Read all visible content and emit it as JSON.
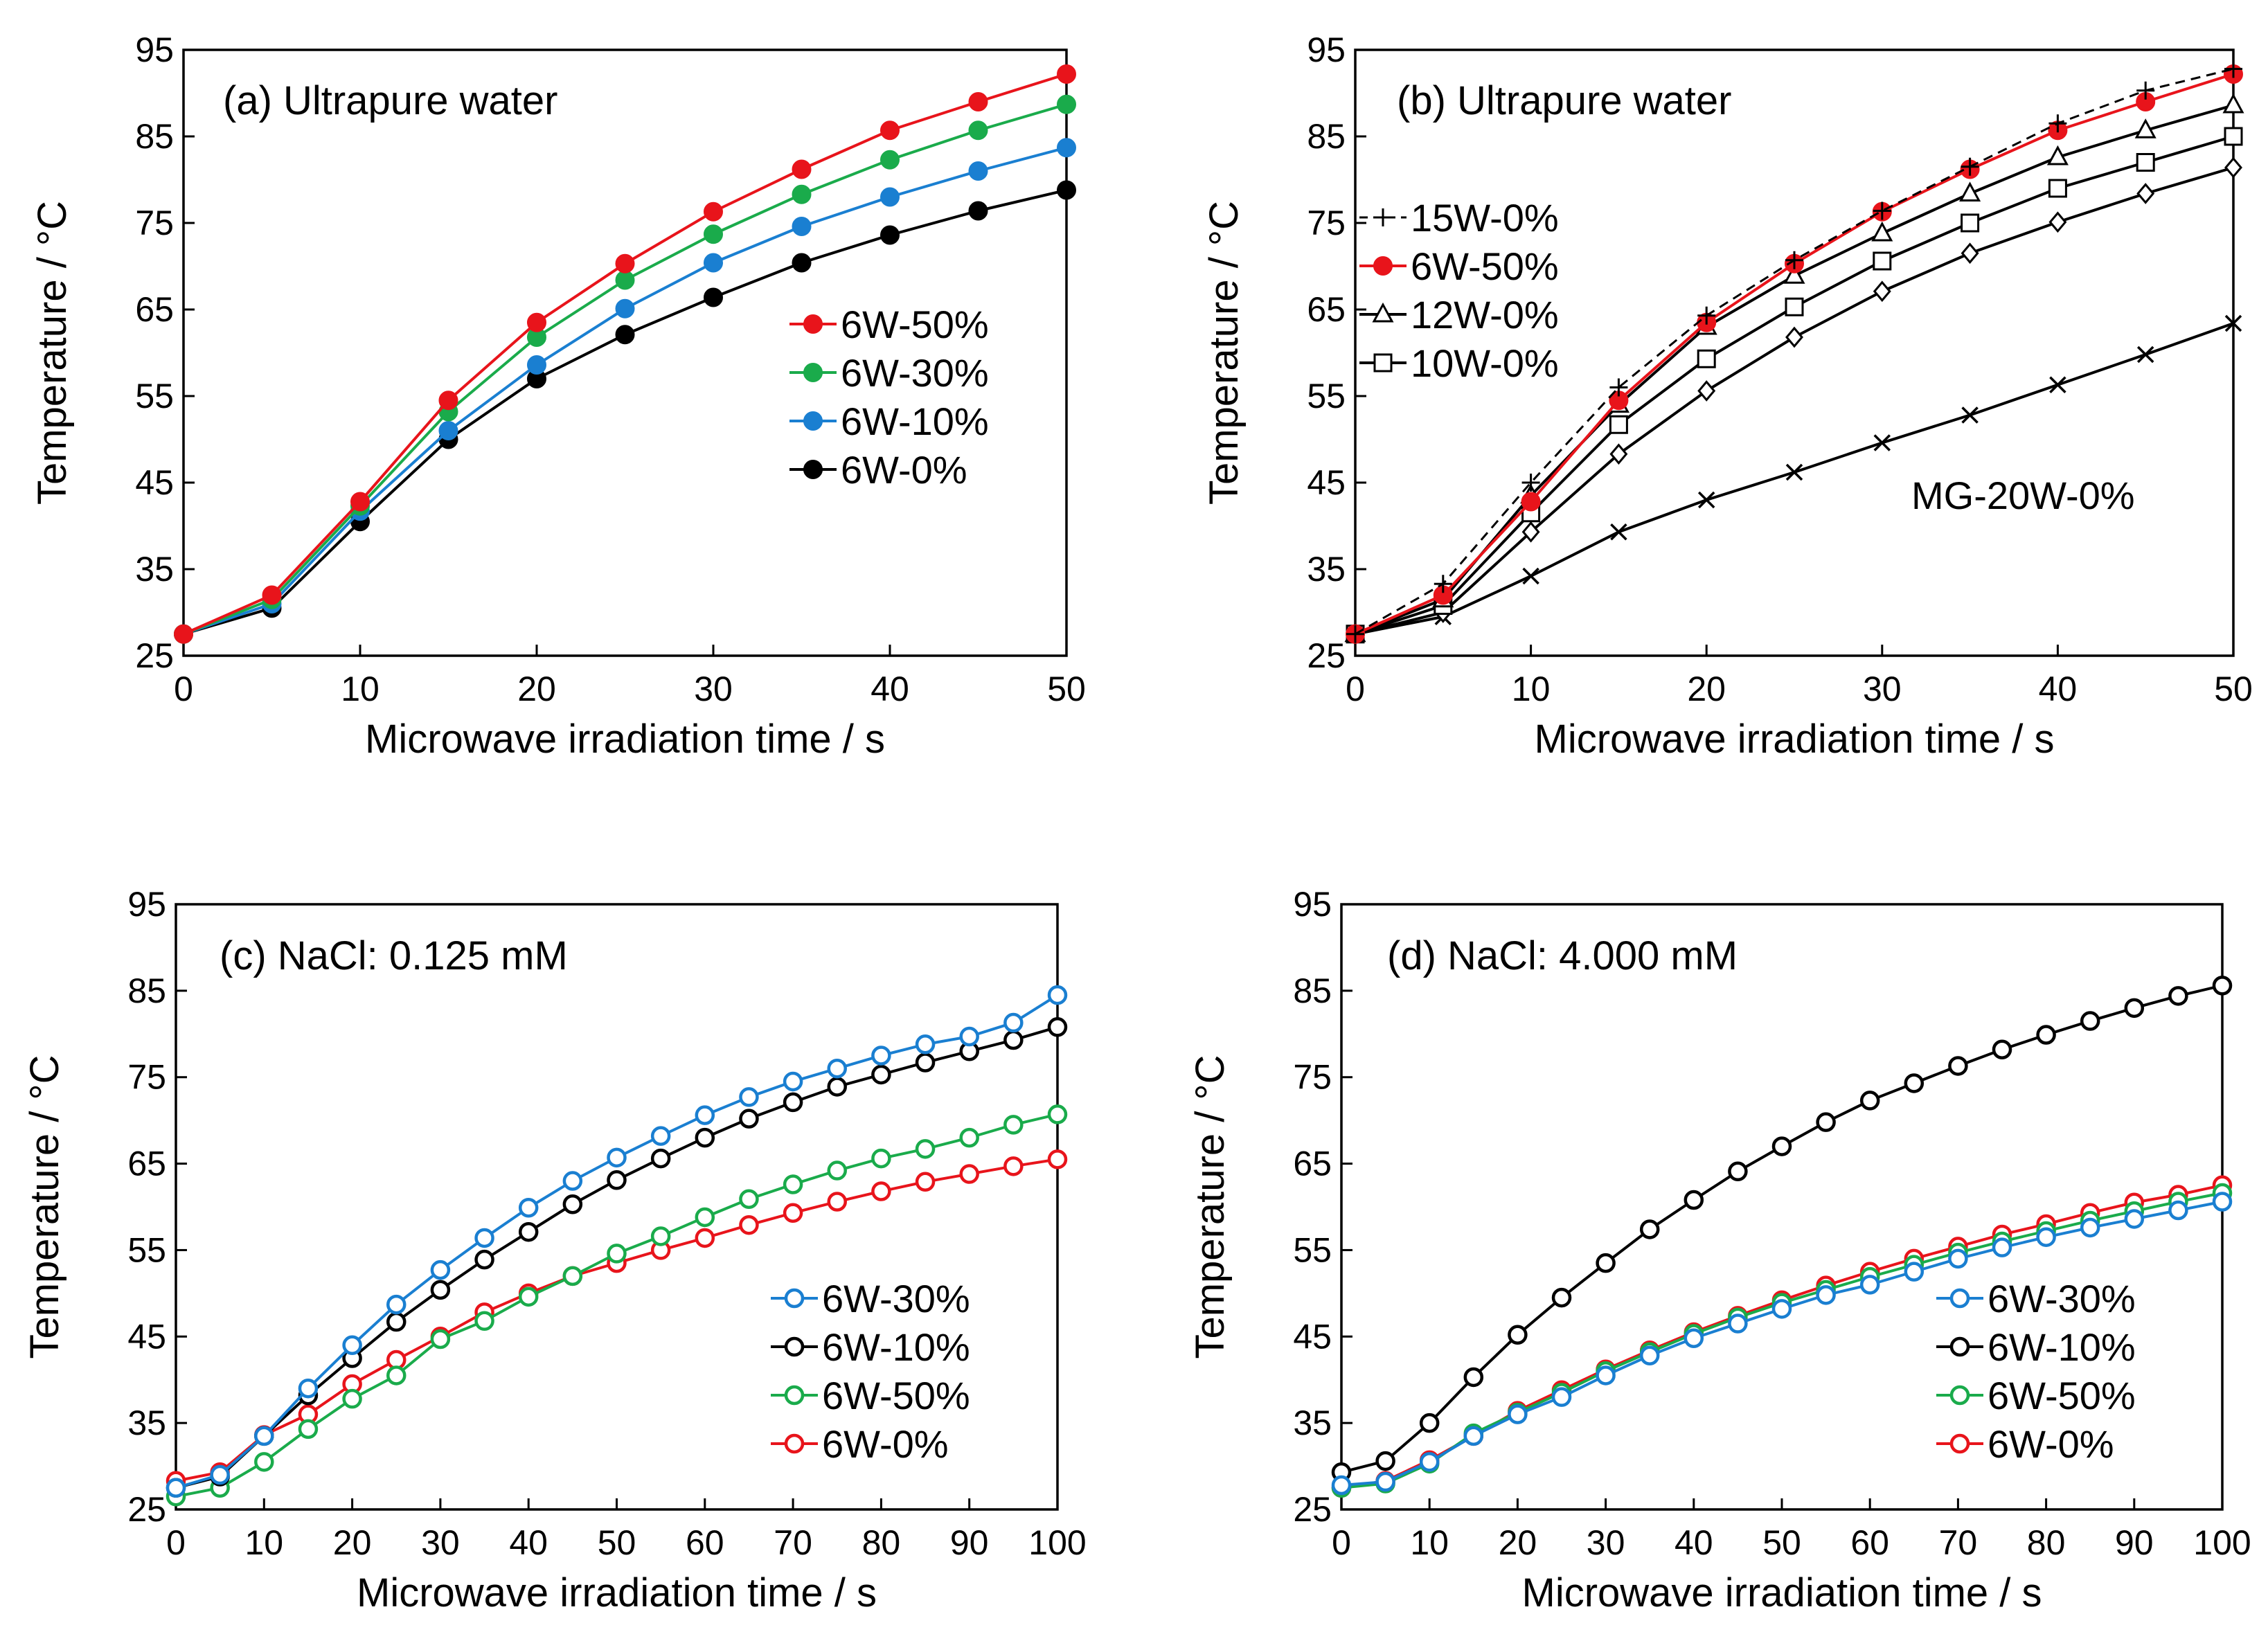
{
  "chart_data": [
    {
      "type": "line",
      "title": "(a) Ultrapure water",
      "xlabel": "Microwave irradiation time / s",
      "ylabel": "Temperature / °C",
      "xlim": [
        0,
        50
      ],
      "ylim": [
        25,
        95
      ],
      "xticks": [
        0,
        10,
        20,
        30,
        40,
        50
      ],
      "yticks": [
        25,
        35,
        45,
        55,
        65,
        75,
        85,
        95
      ],
      "legend_position": "right",
      "x": [
        0,
        5,
        10,
        15,
        20,
        25,
        30,
        35,
        40,
        45,
        50
      ],
      "series": [
        {
          "name": "6W-50%",
          "color": "#e8141b",
          "marker": "filled-circle",
          "values": [
            27.5,
            32,
            42.8,
            54.5,
            63.5,
            70.3,
            76.3,
            81.2,
            85.7,
            89.0,
            92.2
          ]
        },
        {
          "name": "6W-30%",
          "color": "#1aab4b",
          "marker": "filled-circle",
          "values": [
            27.5,
            31.5,
            42.3,
            53.2,
            61.8,
            68.4,
            73.7,
            78.3,
            82.3,
            85.7,
            88.7
          ]
        },
        {
          "name": "6W-10%",
          "color": "#1a7fd1",
          "marker": "filled-circle",
          "values": [
            27.5,
            31,
            41.7,
            51,
            58.6,
            65.1,
            70.4,
            74.6,
            78.0,
            81.0,
            83.7
          ]
        },
        {
          "name": "6W-0%",
          "color": "#000000",
          "marker": "filled-circle",
          "values": [
            27.5,
            30.5,
            40.5,
            50,
            57,
            62.1,
            66.4,
            70.4,
            73.6,
            76.4,
            78.8
          ]
        }
      ]
    },
    {
      "type": "line",
      "title": "(b) Ultrapure water",
      "xlabel": "Microwave irradiation time / s",
      "ylabel": "Temperature / °C",
      "xlim": [
        0,
        50
      ],
      "ylim": [
        25,
        95
      ],
      "xticks": [
        0,
        10,
        20,
        30,
        40,
        50
      ],
      "yticks": [
        25,
        35,
        45,
        55,
        65,
        75,
        85,
        95
      ],
      "legend_position": "top-left",
      "annotation": "MG-20W-0%",
      "x": [
        0,
        5,
        10,
        15,
        20,
        25,
        30,
        35,
        40,
        45,
        50
      ],
      "series": [
        {
          "name": "15W-0%",
          "color": "#000000",
          "marker": "plus",
          "dashed": true,
          "values": [
            27.5,
            33.3,
            45,
            56,
            64.3,
            70.7,
            76.4,
            81.5,
            86.5,
            90.3,
            92.8
          ]
        },
        {
          "name": "6W-50%",
          "color": "#e8141b",
          "marker": "filled-circle",
          "values": [
            27.5,
            32,
            42.8,
            54.5,
            63.5,
            70.3,
            76.3,
            81.2,
            85.7,
            89.0,
            92.2
          ]
        },
        {
          "name": "12W-0%",
          "color": "#000000",
          "marker": "triangle",
          "values": [
            27.5,
            31.5,
            43.5,
            54,
            63,
            68.9,
            73.8,
            78.4,
            82.6,
            85.7,
            88.6
          ]
        },
        {
          "name": "10W-0%",
          "color": "#000000",
          "marker": "square",
          "values": [
            27.5,
            30.8,
            41.5,
            51.7,
            59.3,
            65.3,
            70.6,
            75.0,
            79.0,
            82.0,
            85.0
          ]
        },
        {
          "name": "",
          "color": "#000000",
          "marker": "diamond",
          "values": [
            27.5,
            30,
            39.3,
            48.3,
            55.6,
            61.8,
            67.1,
            71.5,
            75.1,
            78.4,
            81.4
          ]
        },
        {
          "name": "MG-20W-0%",
          "color": "#000000",
          "marker": "x",
          "values": [
            27.5,
            29.5,
            34.2,
            39.3,
            43,
            46.2,
            49.6,
            52.8,
            56.3,
            59.8,
            63.4
          ]
        }
      ]
    },
    {
      "type": "line",
      "title": "(c) NaCl: 0.125 mM",
      "xlabel": "Microwave irradiation time / s",
      "ylabel": "Temperature / °C",
      "xlim": [
        0,
        100
      ],
      "ylim": [
        25,
        95
      ],
      "xticks": [
        0,
        10,
        20,
        30,
        40,
        50,
        60,
        70,
        80,
        90,
        100
      ],
      "yticks": [
        25,
        35,
        45,
        55,
        65,
        75,
        85,
        95
      ],
      "legend_position": "bottom-right",
      "x": [
        0,
        5,
        10,
        15,
        20,
        25,
        30,
        35,
        40,
        45,
        50,
        55,
        60,
        65,
        70,
        75,
        80,
        85,
        90,
        95,
        100
      ],
      "series": [
        {
          "name": "6W-30%",
          "color": "#1a7fd1",
          "marker": "open-circle",
          "values": [
            27.5,
            29,
            33.5,
            39,
            44,
            48.7,
            52.7,
            56.4,
            59.9,
            63,
            65.7,
            68.2,
            70.6,
            72.7,
            74.5,
            76,
            77.5,
            78.8,
            79.7,
            81.3,
            84.5
          ]
        },
        {
          "name": "6W-10%",
          "color": "#000000",
          "marker": "open-circle",
          "values": [
            27.5,
            28.8,
            33.5,
            38.2,
            42.5,
            46.7,
            50.4,
            53.9,
            57.1,
            60.3,
            63.1,
            65.6,
            68,
            70.2,
            72.1,
            73.9,
            75.3,
            76.7,
            78,
            79.3,
            80.8
          ]
        },
        {
          "name": "6W-50%",
          "color": "#1aab4b",
          "marker": "open-circle",
          "values": [
            26.5,
            27.5,
            30.5,
            34.3,
            37.8,
            40.5,
            44.7,
            46.8,
            49.6,
            52.0,
            54.6,
            56.6,
            58.8,
            60.9,
            62.6,
            64.2,
            65.6,
            66.7,
            68,
            69.5,
            70.7
          ]
        },
        {
          "name": "6W-0%",
          "color": "#e8141b",
          "marker": "open-circle",
          "values": [
            28.3,
            29.3,
            33.6,
            36.0,
            39.5,
            42.3,
            45.0,
            47.8,
            50.0,
            52.0,
            53.5,
            55.0,
            56.4,
            57.9,
            59.3,
            60.6,
            61.8,
            62.9,
            63.8,
            64.7,
            65.5
          ]
        }
      ]
    },
    {
      "type": "line",
      "title": "(d) NaCl: 4.000 mM",
      "xlabel": "Microwave irradiation time / s",
      "ylabel": "Temperature / °C",
      "xlim": [
        0,
        100
      ],
      "ylim": [
        25,
        95
      ],
      "xticks": [
        0,
        10,
        20,
        30,
        40,
        50,
        60,
        70,
        80,
        90,
        100
      ],
      "yticks": [
        25,
        35,
        45,
        55,
        65,
        75,
        85,
        95
      ],
      "legend_position": "bottom-right",
      "x": [
        0,
        5,
        10,
        15,
        20,
        25,
        30,
        35,
        40,
        45,
        50,
        55,
        60,
        65,
        70,
        75,
        80,
        85,
        90,
        95,
        100
      ],
      "series": [
        {
          "name": "6W-30%",
          "color": "#1a7fd1",
          "marker": "open-circle",
          "values": [
            27.8,
            28.2,
            30.5,
            33.5,
            36.0,
            38.0,
            40.5,
            42.8,
            44.8,
            46.5,
            48.2,
            49.8,
            51.0,
            52.5,
            54.0,
            55.3,
            56.5,
            57.6,
            58.6,
            59.6,
            60.6
          ]
        },
        {
          "name": "6W-10%",
          "color": "#000000",
          "marker": "open-circle",
          "values": [
            29.3,
            30.6,
            35,
            40.3,
            45.2,
            49.5,
            53.5,
            57.4,
            60.8,
            64.1,
            67,
            69.8,
            72.3,
            74.3,
            76.3,
            78.2,
            79.9,
            81.5,
            83,
            84.4,
            85.6
          ]
        },
        {
          "name": "6W-50%",
          "color": "#1aab4b",
          "marker": "open-circle",
          "values": [
            27.5,
            28.0,
            30.3,
            33.8,
            36.2,
            38.5,
            41,
            43.2,
            45.3,
            47.2,
            48.9,
            50.4,
            51.9,
            53.3,
            54.7,
            56.0,
            57.2,
            58.4,
            59.5,
            60.6,
            61.6
          ]
        },
        {
          "name": "6W-0%",
          "color": "#e8141b",
          "marker": "open-circle",
          "values": [
            27.5,
            28.3,
            30.7,
            33.5,
            36.4,
            38.8,
            41.2,
            43.4,
            45.5,
            47.4,
            49.2,
            50.9,
            52.5,
            54.0,
            55.4,
            56.8,
            58.0,
            59.3,
            60.5,
            61.4,
            62.5
          ]
        }
      ]
    }
  ]
}
